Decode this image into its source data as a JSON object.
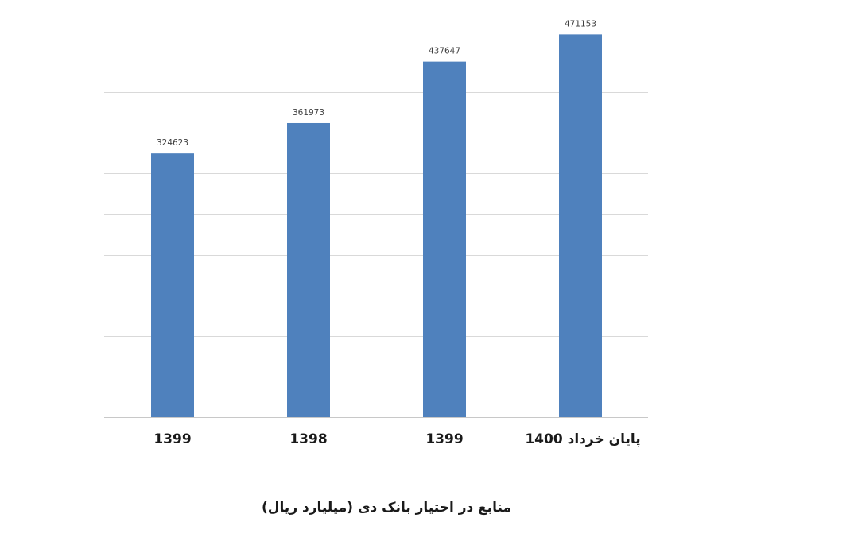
{
  "chart_data": {
    "type": "bar",
    "title": "منابع در اختیار بانک دی (میلیارد ریال)",
    "categories": [
      "1399",
      "1398",
      "1399",
      "پایان خرداد 1400"
    ],
    "values": [
      324623,
      361973,
      437647,
      471153
    ],
    "ylim": [
      0,
      450000
    ],
    "gridline_step": 50000,
    "grid": true,
    "y_axis_labels": false,
    "bar_color": "#4f81bd",
    "legend": "none"
  }
}
